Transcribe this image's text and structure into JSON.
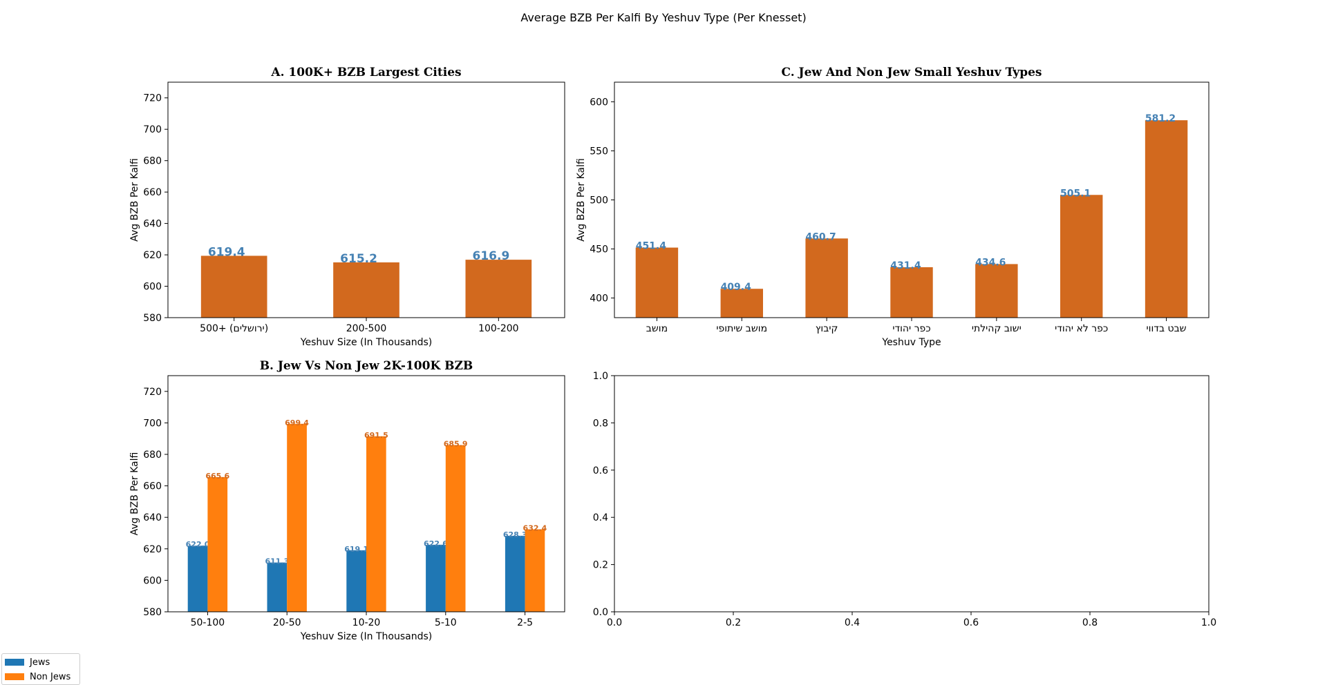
{
  "suptitle": "Average BZB Per Kalfi By Yeshuv Type (Per Knesset)",
  "colors": {
    "bar_single": "#d2691e",
    "label_blue": "#4682b4",
    "jews": "#1f77b4",
    "non_jews": "#ff7f0e",
    "non_jews_label": "#d2691e",
    "jews_label": "#4682b4"
  },
  "legend": {
    "placement": "bottom-left",
    "items": [
      {
        "name": "Jews",
        "color": "#1f77b4"
      },
      {
        "name": "Non Jews",
        "color": "#ff7f0e"
      }
    ]
  },
  "chart_data": [
    {
      "id": "A",
      "type": "bar",
      "title": "A. 100K+ BZB Largest Cities",
      "xlabel": "Yeshuv Size (In Thousands)",
      "ylabel": "Avg BZB Per Kalfi",
      "categories": [
        "500+ (ירושלים)",
        "200-500",
        "100-200"
      ],
      "values": [
        619.4,
        615.2,
        616.9
      ],
      "value_labels": [
        "619.4",
        "615.2",
        "616.9"
      ],
      "ylim": [
        580,
        730
      ],
      "yticks": [
        580,
        600,
        620,
        640,
        660,
        680,
        700,
        720
      ]
    },
    {
      "id": "C",
      "type": "bar",
      "title": "C. Jew And Non Jew Small Yeshuv Types",
      "xlabel": "Yeshuv Type",
      "ylabel": "Avg BZB Per Kalfi",
      "categories": [
        "מושב",
        "מושב שיתופי",
        "קיבוץ",
        "כפר יהודי",
        "ישוב קהילתי",
        "כפר לא יהודי",
        "שבט בדווי"
      ],
      "values": [
        451.4,
        409.4,
        460.7,
        431.4,
        434.6,
        505.1,
        581.2
      ],
      "value_labels": [
        "451.4",
        "409.4",
        "460.7",
        "431.4",
        "434.6",
        "505.1",
        "581.2"
      ],
      "ylim": [
        380,
        620
      ],
      "yticks": [
        400,
        450,
        500,
        550,
        600
      ]
    },
    {
      "id": "B",
      "type": "bar",
      "title": "B. Jew Vs Non Jew 2K-100K BZB",
      "xlabel": "Yeshuv Size (In Thousands)",
      "ylabel": "Avg BZB Per Kalfi",
      "categories": [
        "50-100",
        "20-50",
        "10-20",
        "5-10",
        "2-5"
      ],
      "series": [
        {
          "name": "Jews",
          "values": [
            622.0,
            611.3,
            619.1,
            622.6,
            628.3
          ],
          "value_labels": [
            "622.0",
            "611.3",
            "619.1",
            "622.6",
            "628.3"
          ]
        },
        {
          "name": "Non Jews",
          "values": [
            665.6,
            699.4,
            691.5,
            685.9,
            632.4
          ],
          "value_labels": [
            "665.6",
            "699.4",
            "691.5",
            "685.9",
            "632.4"
          ]
        }
      ],
      "ylim": [
        580,
        730
      ],
      "yticks": [
        580,
        600,
        620,
        640,
        660,
        680,
        700,
        720
      ]
    },
    {
      "id": "D",
      "type": "scatter",
      "title": "",
      "empty": true,
      "xlim": [
        0,
        1
      ],
      "ylim": [
        0,
        1
      ],
      "xticks": [
        "0.0",
        "0.2",
        "0.4",
        "0.6",
        "0.8",
        "1.0"
      ],
      "yticks": [
        "0.0",
        "0.2",
        "0.4",
        "0.6",
        "0.8",
        "1.0"
      ]
    }
  ]
}
